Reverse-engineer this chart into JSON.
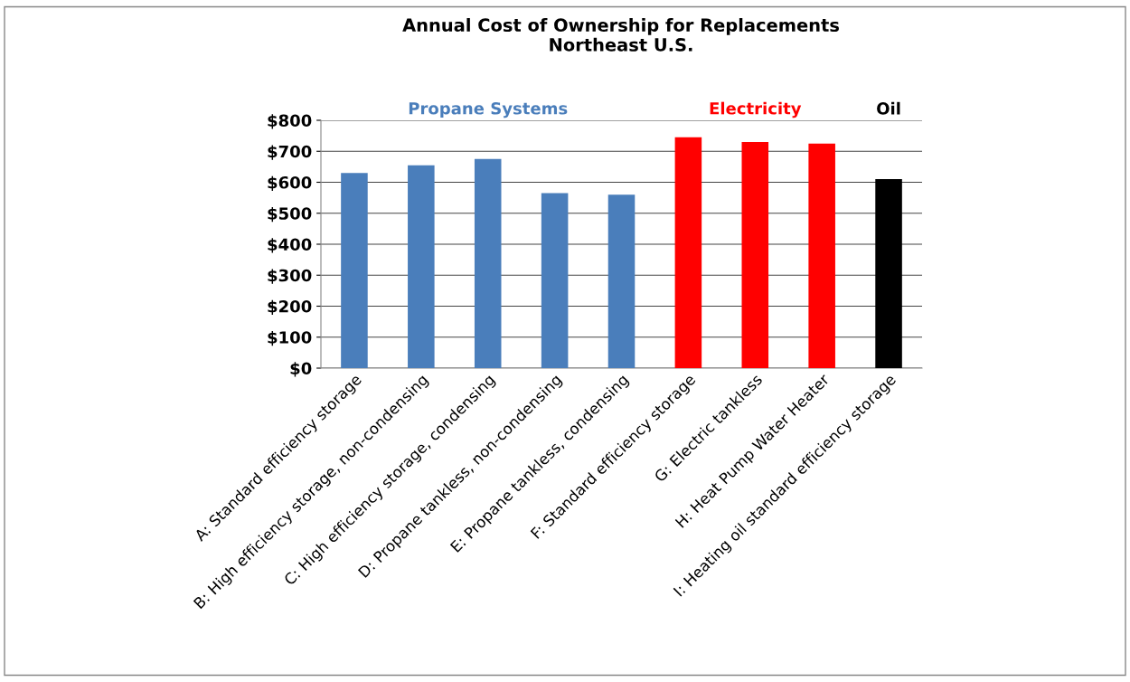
{
  "chart_data": {
    "type": "bar",
    "title": "Annual Cost of Ownership for Replacements\nNortheast U.S.",
    "categories": [
      "A: Standard efficiency storage",
      "B: High efficiency storage, non-condensing",
      "C: High efficiency storage, condensing",
      "D: Propane tankless, non-condensing",
      "E: Propane tankless, condensing",
      "F: Standard efficiency storage",
      "G: Electric tankless",
      "H: Heat Pump Water Heater",
      "I: Heating oil standard efficiency storage"
    ],
    "values": [
      630,
      655,
      675,
      565,
      560,
      745,
      730,
      725,
      610
    ],
    "colors": [
      "#4a7ebb",
      "#4a7ebb",
      "#4a7ebb",
      "#4a7ebb",
      "#4a7ebb",
      "#ff0000",
      "#ff0000",
      "#ff0000",
      "#000000"
    ],
    "ylim": [
      0,
      800
    ],
    "yticks": [
      {
        "value": 0,
        "label": "$0"
      },
      {
        "value": 100,
        "label": "$100"
      },
      {
        "value": 200,
        "label": "$200"
      },
      {
        "value": 300,
        "label": "$300"
      },
      {
        "value": 400,
        "label": "$400"
      },
      {
        "value": 500,
        "label": "$500"
      },
      {
        "value": 600,
        "label": "$600"
      },
      {
        "value": 700,
        "label": "$700"
      },
      {
        "value": 800,
        "label": "$800"
      }
    ],
    "grid": "y",
    "legend": false,
    "annotations": [
      "Propane Systems",
      "Electricity",
      "Oil"
    ]
  }
}
